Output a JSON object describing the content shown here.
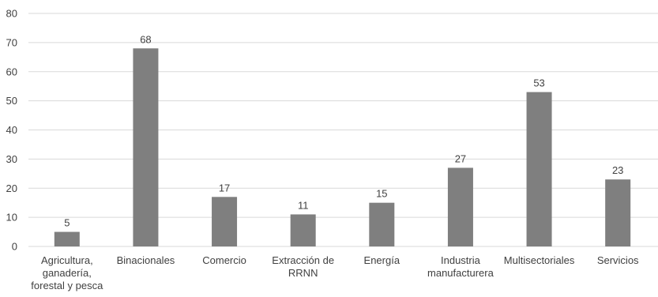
{
  "chart_data": {
    "type": "bar",
    "title": "",
    "xlabel": "",
    "ylabel": "",
    "categories": [
      [
        "Agricultura,",
        "ganadería,",
        "forestal y pesca"
      ],
      [
        "Binacionales"
      ],
      [
        "Comercio"
      ],
      [
        "Extracción de",
        "RRNN"
      ],
      [
        "Energía"
      ],
      [
        "Industria",
        "manufacturera"
      ],
      [
        "Multisectoriales"
      ],
      [
        "Servicios"
      ]
    ],
    "values": [
      5,
      68,
      17,
      11,
      15,
      27,
      53,
      23
    ],
    "ylim": [
      0,
      80
    ],
    "yticks": [
      0,
      10,
      20,
      30,
      40,
      50,
      60,
      70,
      80
    ],
    "grid": true,
    "legend": "none",
    "data_labels": true
  },
  "colors": {
    "bar": "#7f7f7f",
    "grid": "#d9d9d9",
    "text": "#404040"
  }
}
